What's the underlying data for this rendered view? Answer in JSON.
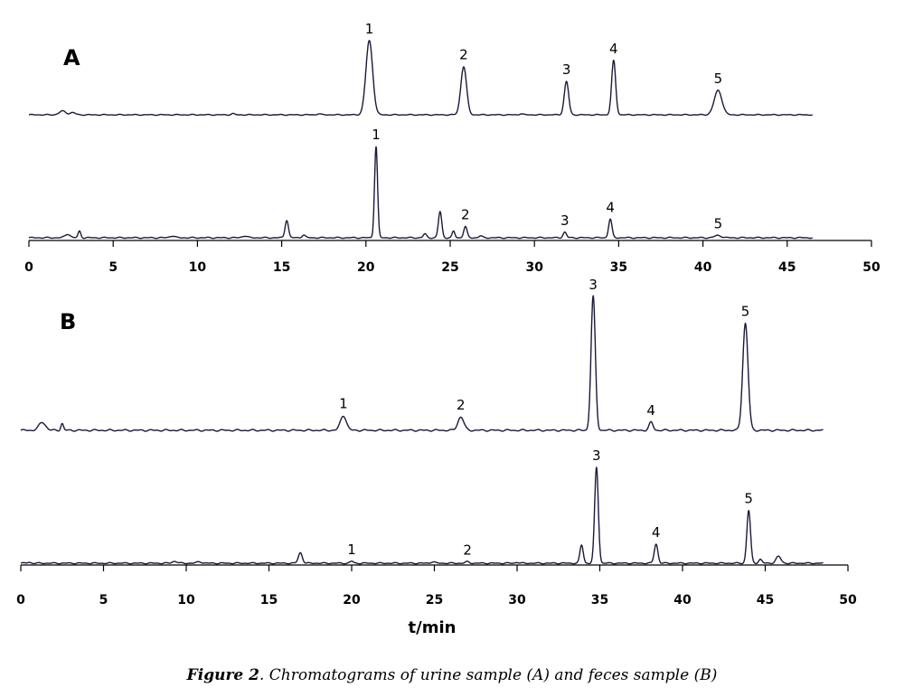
{
  "figure": {
    "caption_bold": "Figure 2",
    "caption_rest": ". Chromatograms of urine sample (A) and feces sample (B)"
  },
  "chart_data": [
    {
      "type": "line",
      "panel": "A",
      "xlabel": "",
      "xlim": [
        0,
        50
      ],
      "x_ticks": [
        0,
        5,
        10,
        15,
        20,
        25,
        30,
        35,
        40,
        45,
        50
      ],
      "x_range": [
        0,
        46.5
      ],
      "series": [
        {
          "peaks": [
            {
              "rt": 2.0,
              "h": 0.05,
              "w": 0.2
            },
            {
              "rt": 2.6,
              "h": 0.03,
              "w": 0.15
            },
            {
              "rt": 12.1,
              "h": 0.015,
              "w": 0.1
            },
            {
              "rt": 17.2,
              "h": 0.015,
              "w": 0.1
            },
            {
              "rt": 20.2,
              "h": 1.0,
              "w": 0.2,
              "label": "1"
            },
            {
              "rt": 25.8,
              "h": 0.65,
              "w": 0.17,
              "label": "2"
            },
            {
              "rt": 29.2,
              "h": 0.015,
              "w": 0.1
            },
            {
              "rt": 31.9,
              "h": 0.45,
              "w": 0.13,
              "label": "3"
            },
            {
              "rt": 34.7,
              "h": 0.73,
              "w": 0.12,
              "label": "4"
            },
            {
              "rt": 40.9,
              "h": 0.33,
              "w": 0.23,
              "label": "5"
            }
          ]
        },
        {
          "peaks": [
            {
              "rt": 2.3,
              "h": 0.04,
              "w": 0.15
            },
            {
              "rt": 3.0,
              "h": 0.07,
              "w": 0.08
            },
            {
              "rt": 8.5,
              "h": 0.02,
              "w": 0.15
            },
            {
              "rt": 12.8,
              "h": 0.02,
              "w": 0.15
            },
            {
              "rt": 15.3,
              "h": 0.19,
              "w": 0.1
            },
            {
              "rt": 16.3,
              "h": 0.03,
              "w": 0.1
            },
            {
              "rt": 20.6,
              "h": 0.98,
              "w": 0.09,
              "label": "1"
            },
            {
              "rt": 23.5,
              "h": 0.04,
              "w": 0.1
            },
            {
              "rt": 24.4,
              "h": 0.28,
              "w": 0.1
            },
            {
              "rt": 25.2,
              "h": 0.07,
              "w": 0.08
            },
            {
              "rt": 25.9,
              "h": 0.12,
              "w": 0.1,
              "label": "2"
            },
            {
              "rt": 26.8,
              "h": 0.02,
              "w": 0.1
            },
            {
              "rt": 31.8,
              "h": 0.06,
              "w": 0.1,
              "label": "3"
            },
            {
              "rt": 34.5,
              "h": 0.2,
              "w": 0.1,
              "label": "4"
            },
            {
              "rt": 40.9,
              "h": 0.025,
              "w": 0.2,
              "label": "5"
            }
          ]
        }
      ],
      "peak_labels": [
        "1",
        "2",
        "3",
        "4",
        "5"
      ]
    },
    {
      "type": "line",
      "panel": "B",
      "xlabel": "t/min",
      "xlim": [
        0,
        50
      ],
      "x_ticks": [
        0,
        5,
        10,
        15,
        20,
        25,
        30,
        35,
        40,
        45,
        50
      ],
      "x_range": [
        0,
        48.5
      ],
      "series": [
        {
          "peaks": [
            {
              "rt": 1.3,
              "h": 0.06,
              "w": 0.2
            },
            {
              "rt": 2.5,
              "h": 0.05,
              "w": 0.08
            },
            {
              "rt": 19.5,
              "h": 0.11,
              "w": 0.18,
              "label": "1"
            },
            {
              "rt": 26.6,
              "h": 0.1,
              "w": 0.18,
              "label": "2"
            },
            {
              "rt": 34.6,
              "h": 1.0,
              "w": 0.13,
              "label": "3"
            },
            {
              "rt": 38.1,
              "h": 0.06,
              "w": 0.12,
              "label": "4"
            },
            {
              "rt": 43.8,
              "h": 0.8,
              "w": 0.16,
              "label": "5"
            }
          ]
        },
        {
          "peaks": [
            {
              "rt": 0.5,
              "h": 0.01,
              "w": 0.1
            },
            {
              "rt": 9.3,
              "h": 0.02,
              "w": 0.15
            },
            {
              "rt": 10.8,
              "h": 0.015,
              "w": 0.15
            },
            {
              "rt": 16.9,
              "h": 0.11,
              "w": 0.12
            },
            {
              "rt": 20.0,
              "h": 0.02,
              "w": 0.1,
              "label": "1"
            },
            {
              "rt": 24.9,
              "h": 0.015,
              "w": 0.12
            },
            {
              "rt": 27.0,
              "h": 0.015,
              "w": 0.12,
              "label": "2"
            },
            {
              "rt": 30.0,
              "h": 0.01,
              "w": 0.1
            },
            {
              "rt": 33.9,
              "h": 0.19,
              "w": 0.1
            },
            {
              "rt": 34.8,
              "h": 1.0,
              "w": 0.11,
              "label": "3"
            },
            {
              "rt": 38.4,
              "h": 0.2,
              "w": 0.11,
              "label": "4"
            },
            {
              "rt": 44.0,
              "h": 0.55,
              "w": 0.11,
              "label": "5"
            },
            {
              "rt": 44.7,
              "h": 0.04,
              "w": 0.1
            },
            {
              "rt": 45.8,
              "h": 0.07,
              "w": 0.15
            }
          ]
        }
      ],
      "peak_labels": [
        "1",
        "2",
        "3",
        "4",
        "5"
      ]
    }
  ]
}
